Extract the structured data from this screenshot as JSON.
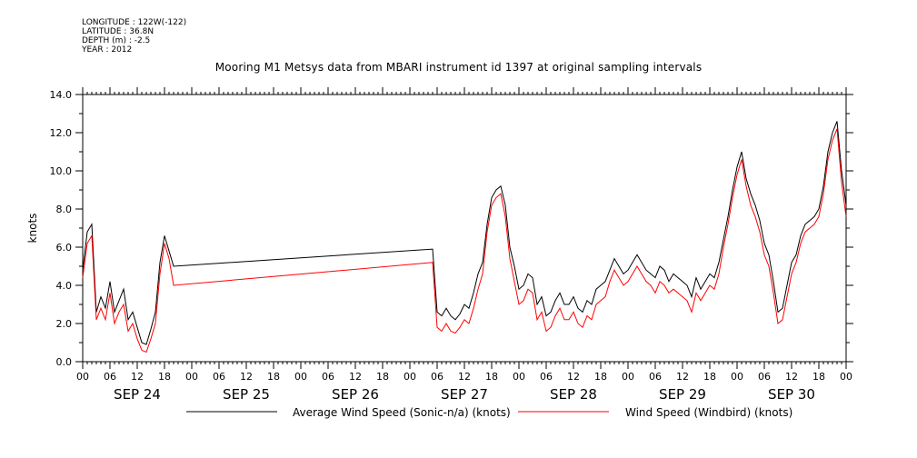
{
  "meta": {
    "longitude": "LONGITUDE : 122W(-122)",
    "latitude": "LATITUDE : 36.8N",
    "depth": "DEPTH (m) : -2.5",
    "year": "YEAR : 2012"
  },
  "chart_data": {
    "type": "line",
    "title": "Mooring M1 Metsys data from MBARI instrument id 1397 at original sampling intervals",
    "ylabel": "knots",
    "xlabel": "",
    "ylim": [
      0,
      14
    ],
    "y_ticks": [
      "0.0",
      "2.0",
      "4.0",
      "6.0",
      "8.0",
      "10.0",
      "12.0",
      "14.0"
    ],
    "x_range_hours": [
      0,
      168
    ],
    "x_tick_labels": [
      "00",
      "06",
      "12",
      "18",
      "00",
      "06",
      "12",
      "18",
      "00",
      "06",
      "12",
      "18",
      "00",
      "06",
      "12",
      "18",
      "00",
      "06",
      "12",
      "18",
      "00",
      "06",
      "12",
      "18",
      "00",
      "06",
      "12",
      "18",
      "00"
    ],
    "day_labels": [
      "SEP 24",
      "SEP 25",
      "SEP 26",
      "SEP 27",
      "SEP 28",
      "SEP 29",
      "SEP 30"
    ],
    "grid": false,
    "legend_position": "bottom",
    "series": [
      {
        "name": "Average Wind Speed (Sonic-n/a) (knots)",
        "color": "#000000",
        "points": [
          [
            0,
            4.8
          ],
          [
            1,
            6.8
          ],
          [
            2,
            7.2
          ],
          [
            3,
            2.6
          ],
          [
            4,
            3.4
          ],
          [
            5,
            2.8
          ],
          [
            6,
            4.2
          ],
          [
            7,
            2.6
          ],
          [
            8,
            3.2
          ],
          [
            9,
            3.8
          ],
          [
            10,
            2.2
          ],
          [
            11,
            2.6
          ],
          [
            12,
            1.8
          ],
          [
            13,
            1.0
          ],
          [
            14,
            0.9
          ],
          [
            15,
            1.7
          ],
          [
            16,
            2.6
          ],
          [
            17,
            5.2
          ],
          [
            18,
            6.6
          ],
          [
            19,
            5.8
          ],
          [
            20,
            5.0
          ],
          [
            77,
            5.9
          ],
          [
            78,
            2.6
          ],
          [
            79,
            2.4
          ],
          [
            80,
            2.8
          ],
          [
            81,
            2.4
          ],
          [
            82,
            2.2
          ],
          [
            83,
            2.5
          ],
          [
            84,
            3.0
          ],
          [
            85,
            2.8
          ],
          [
            86,
            3.6
          ],
          [
            87,
            4.6
          ],
          [
            88,
            5.2
          ],
          [
            89,
            7.2
          ],
          [
            90,
            8.6
          ],
          [
            91,
            9.0
          ],
          [
            92,
            9.2
          ],
          [
            93,
            8.2
          ],
          [
            94,
            6.0
          ],
          [
            95,
            5.0
          ],
          [
            96,
            3.8
          ],
          [
            97,
            4.0
          ],
          [
            98,
            4.6
          ],
          [
            99,
            4.4
          ],
          [
            100,
            3.0
          ],
          [
            101,
            3.4
          ],
          [
            102,
            2.4
          ],
          [
            103,
            2.6
          ],
          [
            104,
            3.2
          ],
          [
            105,
            3.6
          ],
          [
            106,
            3.0
          ],
          [
            107,
            3.0
          ],
          [
            108,
            3.4
          ],
          [
            109,
            2.8
          ],
          [
            110,
            2.6
          ],
          [
            111,
            3.2
          ],
          [
            112,
            3.0
          ],
          [
            113,
            3.8
          ],
          [
            114,
            4.0
          ],
          [
            115,
            4.2
          ],
          [
            116,
            4.8
          ],
          [
            117,
            5.4
          ],
          [
            118,
            5.0
          ],
          [
            119,
            4.6
          ],
          [
            120,
            4.8
          ],
          [
            121,
            5.2
          ],
          [
            122,
            5.6
          ],
          [
            123,
            5.2
          ],
          [
            124,
            4.8
          ],
          [
            125,
            4.6
          ],
          [
            126,
            4.4
          ],
          [
            127,
            5.0
          ],
          [
            128,
            4.8
          ],
          [
            129,
            4.2
          ],
          [
            130,
            4.6
          ],
          [
            131,
            4.4
          ],
          [
            132,
            4.2
          ],
          [
            133,
            4.0
          ],
          [
            134,
            3.4
          ],
          [
            135,
            4.4
          ],
          [
            136,
            3.8
          ],
          [
            137,
            4.2
          ],
          [
            138,
            4.6
          ],
          [
            139,
            4.4
          ],
          [
            140,
            5.2
          ],
          [
            141,
            6.4
          ],
          [
            142,
            7.6
          ],
          [
            143,
            9.0
          ],
          [
            144,
            10.2
          ],
          [
            145,
            11.0
          ],
          [
            146,
            9.6
          ],
          [
            147,
            8.8
          ],
          [
            148,
            8.2
          ],
          [
            149,
            7.4
          ],
          [
            150,
            6.2
          ],
          [
            151,
            5.6
          ],
          [
            152,
            4.2
          ],
          [
            153,
            2.6
          ],
          [
            154,
            2.8
          ],
          [
            155,
            4.0
          ],
          [
            156,
            5.2
          ],
          [
            157,
            5.6
          ],
          [
            158,
            6.6
          ],
          [
            159,
            7.2
          ],
          [
            160,
            7.4
          ],
          [
            161,
            7.6
          ],
          [
            162,
            8.0
          ],
          [
            163,
            9.2
          ],
          [
            164,
            11.0
          ],
          [
            165,
            12.0
          ],
          [
            166,
            12.6
          ],
          [
            167,
            10.0
          ],
          [
            168,
            8.2
          ]
        ]
      },
      {
        "name": "Wind Speed (Windbird) (knots)",
        "color": "#ff0000",
        "points": [
          [
            0,
            4.4
          ],
          [
            1,
            6.2
          ],
          [
            2,
            6.6
          ],
          [
            3,
            2.2
          ],
          [
            4,
            2.8
          ],
          [
            5,
            2.2
          ],
          [
            6,
            3.6
          ],
          [
            7,
            2.0
          ],
          [
            8,
            2.6
          ],
          [
            9,
            3.0
          ],
          [
            10,
            1.6
          ],
          [
            11,
            2.0
          ],
          [
            12,
            1.2
          ],
          [
            13,
            0.6
          ],
          [
            14,
            0.5
          ],
          [
            15,
            1.2
          ],
          [
            16,
            2.0
          ],
          [
            17,
            4.6
          ],
          [
            18,
            6.2
          ],
          [
            19,
            5.4
          ],
          [
            20,
            4.0
          ],
          [
            77,
            5.2
          ],
          [
            78,
            1.8
          ],
          [
            79,
            1.6
          ],
          [
            80,
            2.0
          ],
          [
            81,
            1.6
          ],
          [
            82,
            1.5
          ],
          [
            83,
            1.8
          ],
          [
            84,
            2.2
          ],
          [
            85,
            2.0
          ],
          [
            86,
            2.8
          ],
          [
            87,
            3.8
          ],
          [
            88,
            4.6
          ],
          [
            89,
            6.8
          ],
          [
            90,
            8.2
          ],
          [
            91,
            8.6
          ],
          [
            92,
            8.8
          ],
          [
            93,
            7.6
          ],
          [
            94,
            5.4
          ],
          [
            95,
            4.2
          ],
          [
            96,
            3.0
          ],
          [
            97,
            3.2
          ],
          [
            98,
            3.8
          ],
          [
            99,
            3.6
          ],
          [
            100,
            2.2
          ],
          [
            101,
            2.6
          ],
          [
            102,
            1.6
          ],
          [
            103,
            1.8
          ],
          [
            104,
            2.4
          ],
          [
            105,
            2.8
          ],
          [
            106,
            2.2
          ],
          [
            107,
            2.2
          ],
          [
            108,
            2.6
          ],
          [
            109,
            2.0
          ],
          [
            110,
            1.8
          ],
          [
            111,
            2.4
          ],
          [
            112,
            2.2
          ],
          [
            113,
            3.0
          ],
          [
            114,
            3.2
          ],
          [
            115,
            3.4
          ],
          [
            116,
            4.2
          ],
          [
            117,
            4.8
          ],
          [
            118,
            4.4
          ],
          [
            119,
            4.0
          ],
          [
            120,
            4.2
          ],
          [
            121,
            4.6
          ],
          [
            122,
            5.0
          ],
          [
            123,
            4.6
          ],
          [
            124,
            4.2
          ],
          [
            125,
            4.0
          ],
          [
            126,
            3.6
          ],
          [
            127,
            4.2
          ],
          [
            128,
            4.0
          ],
          [
            129,
            3.6
          ],
          [
            130,
            3.8
          ],
          [
            131,
            3.6
          ],
          [
            132,
            3.4
          ],
          [
            133,
            3.2
          ],
          [
            134,
            2.6
          ],
          [
            135,
            3.6
          ],
          [
            136,
            3.2
          ],
          [
            137,
            3.6
          ],
          [
            138,
            4.0
          ],
          [
            139,
            3.8
          ],
          [
            140,
            4.6
          ],
          [
            141,
            6.0
          ],
          [
            142,
            7.2
          ],
          [
            143,
            8.6
          ],
          [
            144,
            9.8
          ],
          [
            145,
            10.6
          ],
          [
            146,
            9.2
          ],
          [
            147,
            8.2
          ],
          [
            148,
            7.6
          ],
          [
            149,
            6.8
          ],
          [
            150,
            5.6
          ],
          [
            151,
            5.0
          ],
          [
            152,
            3.6
          ],
          [
            153,
            2.0
          ],
          [
            154,
            2.2
          ],
          [
            155,
            3.4
          ],
          [
            156,
            4.6
          ],
          [
            157,
            5.2
          ],
          [
            158,
            6.2
          ],
          [
            159,
            6.8
          ],
          [
            160,
            7.0
          ],
          [
            161,
            7.2
          ],
          [
            162,
            7.6
          ],
          [
            163,
            8.8
          ],
          [
            164,
            10.6
          ],
          [
            165,
            11.6
          ],
          [
            166,
            12.2
          ],
          [
            167,
            9.4
          ],
          [
            168,
            7.6
          ]
        ]
      }
    ]
  }
}
